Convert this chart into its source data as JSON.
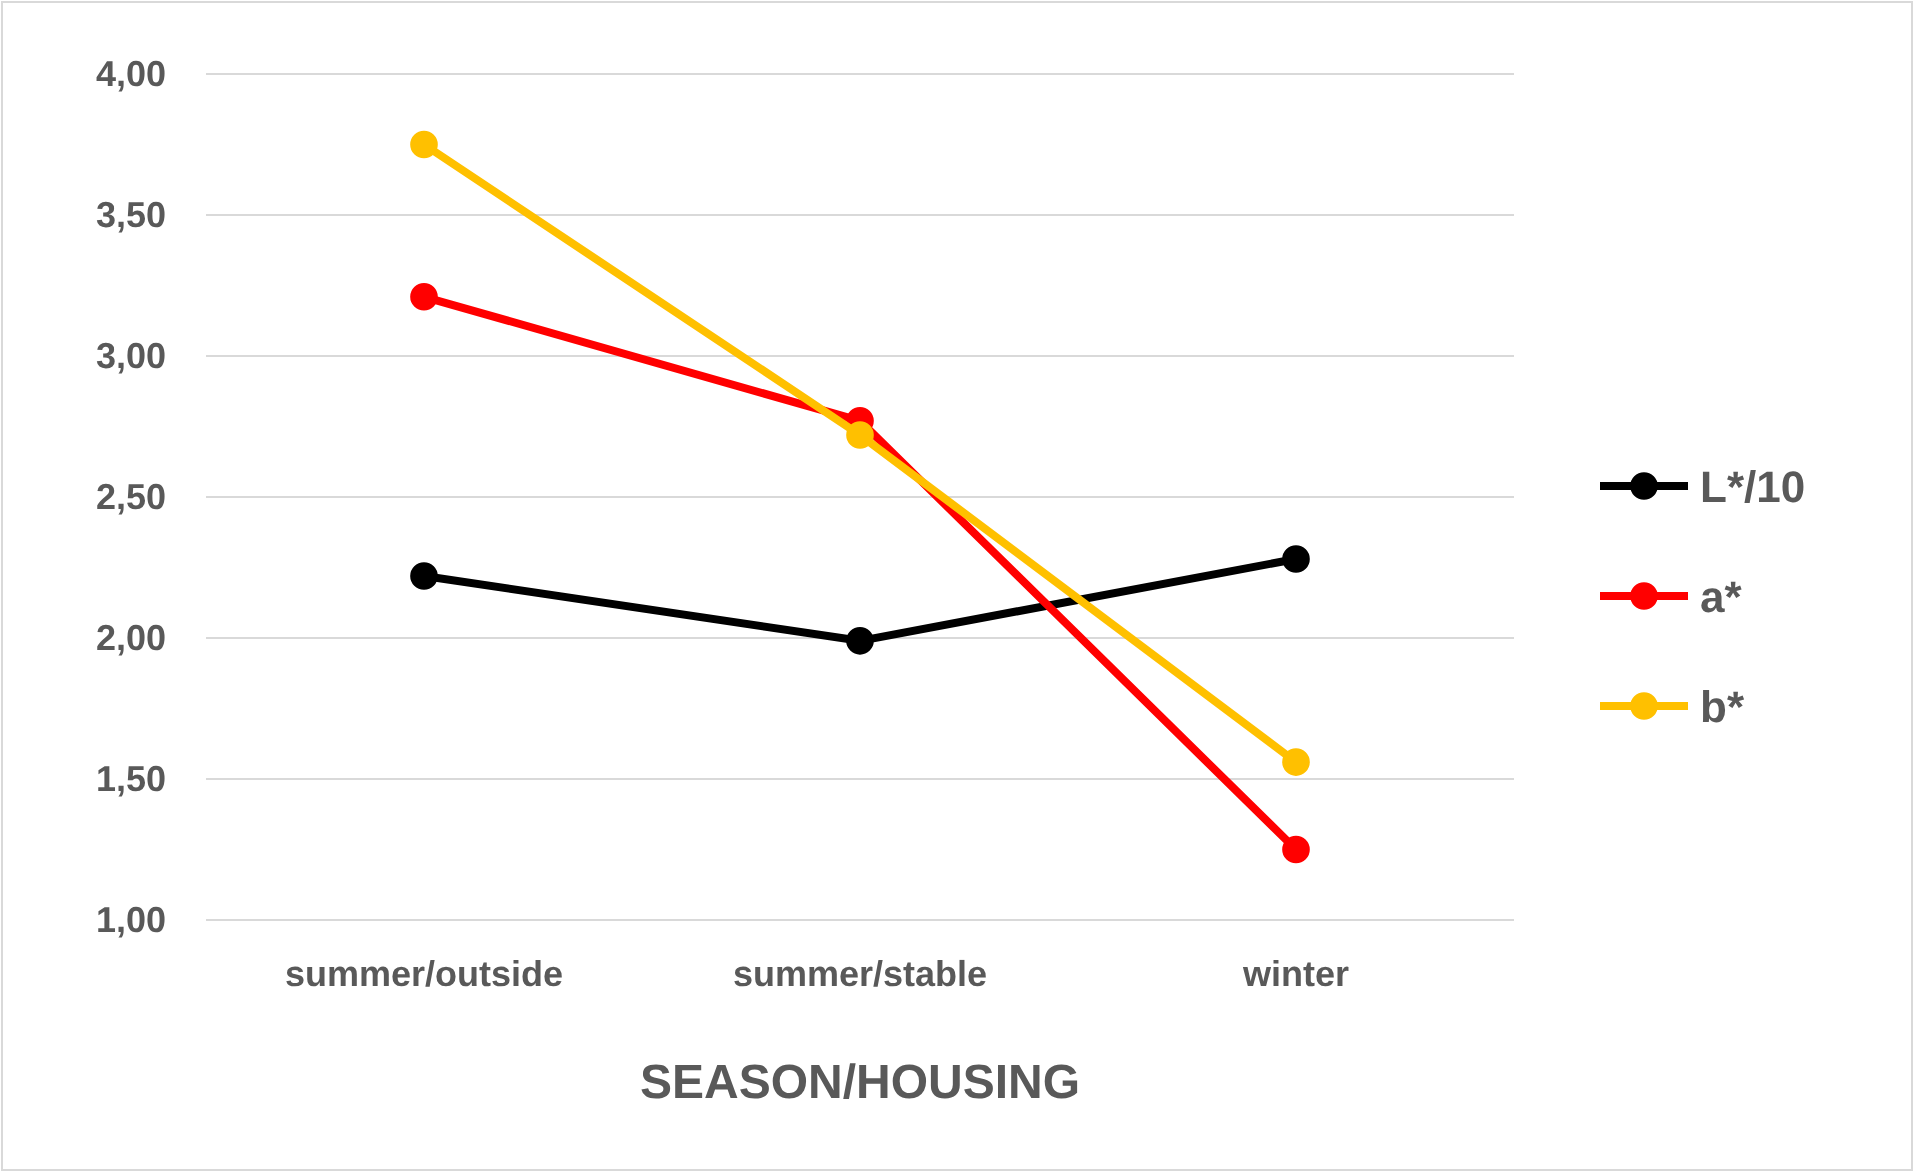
{
  "chart_data": {
    "type": "line",
    "xlabel": "SEASON/HOUSING",
    "categories": [
      "summer/outside",
      "summer/stable",
      "winter"
    ],
    "series": [
      {
        "name": "L*/10",
        "color": "#000000",
        "values": [
          2.22,
          1.99,
          2.28
        ]
      },
      {
        "name": "a*",
        "color": "#ff0000",
        "values": [
          3.21,
          2.77,
          1.25
        ]
      },
      {
        "name": "b*",
        "color": "#ffc000",
        "values": [
          3.75,
          2.72,
          1.56
        ]
      }
    ],
    "ylim": [
      1,
      4
    ],
    "yticks": [
      {
        "value": 1,
        "label": "1,00"
      },
      {
        "value": 1.5,
        "label": "1,50"
      },
      {
        "value": 2,
        "label": "2,00"
      },
      {
        "value": 2.5,
        "label": "2,50"
      },
      {
        "value": 3,
        "label": "3,00"
      },
      {
        "value": 3.5,
        "label": "3,50"
      },
      {
        "value": 4,
        "label": "4,00"
      }
    ],
    "grid": "y",
    "legend": "right",
    "marker": "circle",
    "line_style": "solid"
  }
}
